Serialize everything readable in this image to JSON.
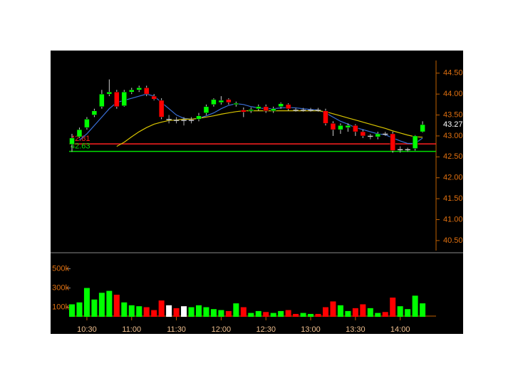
{
  "chart_data": [
    {
      "type": "candlestick",
      "open": [
        42.8,
        42.98,
        43.2,
        43.5,
        43.7,
        44.0,
        44.05,
        43.72,
        44.05,
        44.1,
        44.15,
        43.95,
        43.85,
        43.4,
        43.38,
        43.38,
        43.38,
        43.4,
        43.55,
        43.75,
        43.8,
        43.87,
        43.75,
        43.62,
        43.6,
        43.65,
        43.7,
        43.6,
        43.7,
        43.75,
        43.62,
        43.62,
        43.62,
        43.62,
        43.6,
        43.3,
        43.15,
        43.2,
        43.25,
        43.1,
        43.0,
        42.98,
        43.05,
        43.05,
        42.68,
        42.68,
        42.7,
        43.1
      ],
      "high": [
        43.05,
        43.2,
        43.45,
        43.65,
        44.1,
        44.35,
        44.1,
        44.1,
        44.15,
        44.2,
        44.2,
        44.0,
        43.9,
        43.5,
        43.45,
        43.45,
        43.45,
        43.55,
        43.75,
        43.9,
        43.95,
        43.9,
        43.82,
        43.68,
        43.68,
        43.75,
        43.75,
        43.7,
        43.8,
        43.78,
        43.67,
        43.67,
        43.67,
        43.67,
        43.65,
        43.35,
        43.3,
        43.3,
        43.28,
        43.15,
        43.05,
        43.1,
        43.1,
        43.1,
        42.75,
        42.72,
        43.02,
        43.35
      ],
      "low": [
        42.62,
        42.95,
        43.15,
        43.45,
        43.65,
        43.95,
        43.65,
        43.7,
        44.0,
        44.05,
        43.95,
        43.85,
        43.4,
        43.3,
        43.3,
        43.25,
        43.3,
        43.35,
        43.5,
        43.7,
        43.75,
        43.75,
        43.7,
        43.45,
        43.55,
        43.6,
        43.55,
        43.55,
        43.65,
        43.6,
        43.58,
        43.58,
        43.58,
        43.58,
        43.25,
        43.0,
        43.05,
        43.1,
        43.0,
        42.95,
        42.92,
        42.92,
        43.0,
        42.6,
        42.6,
        42.62,
        42.65,
        43.08
      ],
      "close": [
        42.95,
        43.15,
        43.4,
        43.6,
        44.0,
        44.05,
        43.7,
        44.05,
        44.1,
        44.15,
        44.0,
        43.88,
        43.45,
        43.4,
        43.38,
        43.38,
        43.38,
        43.48,
        43.7,
        43.87,
        43.85,
        43.8,
        43.78,
        43.57,
        43.63,
        43.7,
        43.6,
        43.65,
        43.77,
        43.65,
        43.62,
        43.62,
        43.62,
        43.62,
        43.3,
        43.15,
        43.25,
        43.25,
        43.1,
        43.0,
        43.0,
        43.05,
        43.05,
        42.65,
        42.68,
        42.68,
        43.0,
        43.27
      ],
      "up_color": "#00ff00",
      "down_color": "#ff0000",
      "flat_color": "#ffffff",
      "series": [
        {
          "color": "#3a6fd8",
          "values": [
            null,
            42.9,
            43.05,
            43.25,
            43.45,
            43.65,
            43.8,
            43.85,
            43.9,
            43.95,
            44.0,
            43.95,
            43.8,
            43.65,
            43.5,
            43.42,
            43.4,
            43.42,
            43.48,
            43.55,
            43.65,
            43.73,
            43.77,
            43.75,
            43.7,
            43.67,
            43.65,
            43.65,
            43.67,
            43.68,
            43.67,
            43.65,
            43.63,
            43.62,
            43.55,
            43.45,
            43.35,
            43.28,
            43.2,
            43.15,
            43.1,
            43.05,
            43.03,
            42.95,
            42.88,
            42.82,
            42.82,
            42.95
          ]
        },
        {
          "color": "#d8c400",
          "values": [
            null,
            null,
            null,
            null,
            null,
            null,
            42.75,
            42.85,
            42.98,
            43.1,
            43.2,
            43.28,
            43.33,
            43.37,
            43.38,
            43.4,
            43.4,
            43.42,
            43.45,
            43.48,
            43.52,
            43.55,
            43.58,
            43.6,
            43.6,
            43.6,
            43.6,
            43.6,
            43.6,
            43.6,
            43.6,
            43.6,
            43.6,
            43.6,
            43.58,
            43.53,
            43.48,
            43.43,
            43.38,
            43.33,
            43.28,
            43.23,
            43.18,
            43.12,
            43.07,
            43.02,
            42.98,
            42.97
          ]
        }
      ],
      "reference_lines": [
        {
          "value": 42.81,
          "color": "#ff2020"
        },
        {
          "value": 42.63,
          "color": "#00e000"
        }
      ],
      "last_price": 43.27,
      "ylim": [
        40.26,
        45.04
      ],
      "yticks": [
        {
          "value": 40.5,
          "label": "40.50"
        },
        {
          "value": 41,
          "label": "41.00"
        },
        {
          "value": 41.5,
          "label": "41.50"
        },
        {
          "value": 42,
          "label": "42.00"
        },
        {
          "value": 42.5,
          "label": "42.50"
        },
        {
          "value": 43,
          "label": "43.00"
        },
        {
          "value": 43.5,
          "label": "43.50"
        },
        {
          "value": 44,
          "label": "44.00"
        },
        {
          "value": 44.5,
          "label": "44.50"
        }
      ]
    },
    {
      "type": "bar",
      "categories": [
        null,
        null,
        "10:30",
        null,
        null,
        null,
        null,
        null,
        "11:00",
        null,
        null,
        null,
        null,
        null,
        "11:30",
        null,
        null,
        null,
        null,
        null,
        "12:00",
        null,
        null,
        null,
        null,
        null,
        "12:30",
        null,
        null,
        null,
        null,
        null,
        "13:00",
        null,
        null,
        null,
        null,
        null,
        "13:30",
        null,
        null,
        null,
        null,
        null,
        "14:00",
        null,
        null,
        null
      ],
      "values": [
        130000,
        150000,
        300000,
        180000,
        250000,
        270000,
        230000,
        150000,
        120000,
        110000,
        100000,
        70000,
        170000,
        120000,
        90000,
        110000,
        100000,
        120000,
        100000,
        80000,
        70000,
        60000,
        140000,
        100000,
        40000,
        60000,
        50000,
        40000,
        60000,
        70000,
        30000,
        40000,
        30000,
        30000,
        100000,
        160000,
        120000,
        60000,
        90000,
        130000,
        90000,
        40000,
        50000,
        200000,
        110000,
        80000,
        220000,
        140000
      ],
      "colors": [
        "#00ff00",
        "#00ff00",
        "#00ff00",
        "#00ff00",
        "#00ff00",
        "#00ff00",
        "#ff0000",
        "#00ff00",
        "#00ff00",
        "#00ff00",
        "#ff0000",
        "#ff0000",
        "#ff0000",
        "#ffffff",
        "#ff0000",
        "#ffffff",
        "#00ff00",
        "#00ff00",
        "#00ff00",
        "#00ff00",
        "#00ff00",
        "#ff0000",
        "#00ff00",
        "#ff0000",
        "#00ff00",
        "#00ff00",
        "#ff0000",
        "#00ff00",
        "#00ff00",
        "#ff0000",
        "#ff0000",
        "#00ff00",
        "#00ff00",
        "#ff0000",
        "#ff0000",
        "#ff0000",
        "#00ff00",
        "#00ff00",
        "#ff0000",
        "#ff0000",
        "#00ff00",
        "#00ff00",
        "#ff0000",
        "#ff0000",
        "#00ff00",
        "#00ff00",
        "#00ff00",
        "#00ff00"
      ],
      "ylim": [
        0,
        630000
      ],
      "yticks": [
        {
          "value": 100000,
          "label": "100k"
        },
        {
          "value": 300000,
          "label": "300k"
        },
        {
          "value": 500000,
          "label": "500k"
        }
      ]
    }
  ]
}
